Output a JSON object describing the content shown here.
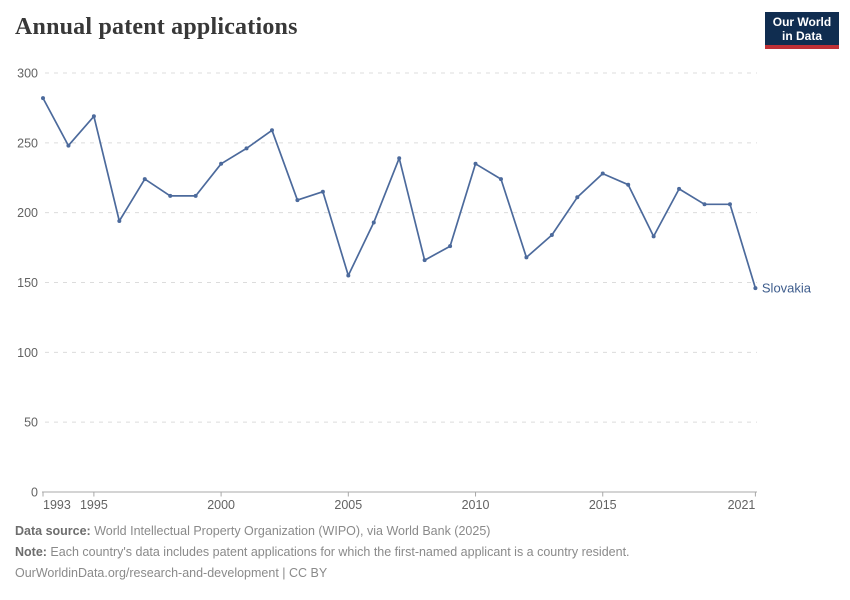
{
  "header": {
    "title": "Annual patent applications",
    "logo": {
      "line1": "Our World",
      "line2": "in Data"
    }
  },
  "chart_data": {
    "type": "line",
    "title": "Annual patent applications",
    "x": [
      1993,
      1994,
      1995,
      1996,
      1997,
      1998,
      1999,
      2000,
      2001,
      2002,
      2003,
      2004,
      2005,
      2006,
      2007,
      2008,
      2009,
      2010,
      2011,
      2012,
      2013,
      2014,
      2015,
      2016,
      2017,
      2018,
      2019,
      2020,
      2021
    ],
    "series": [
      {
        "name": "Slovakia",
        "values": [
          282,
          248,
          269,
          194,
          224,
          212,
          212,
          235,
          246,
          259,
          209,
          215,
          155,
          193,
          239,
          166,
          176,
          235,
          224,
          168,
          184,
          211,
          228,
          220,
          183,
          217,
          206,
          206,
          146
        ],
        "color": "#4c6a9c",
        "label_color": "#3d5c8c"
      }
    ],
    "xlabel": "",
    "ylabel": "",
    "xlim": [
      1993,
      2021
    ],
    "ylim": [
      0,
      300
    ],
    "y_ticks": [
      0,
      50,
      100,
      150,
      200,
      250,
      300
    ],
    "x_ticks": [
      {
        "year": 1993,
        "label": "1993",
        "anchor": "start"
      },
      {
        "year": 1995,
        "label": "1995",
        "anchor": "middle"
      },
      {
        "year": 2000,
        "label": "2000",
        "anchor": "middle"
      },
      {
        "year": 2005,
        "label": "2005",
        "anchor": "middle"
      },
      {
        "year": 2010,
        "label": "2010",
        "anchor": "middle"
      },
      {
        "year": 2015,
        "label": "2015",
        "anchor": "middle"
      },
      {
        "year": 2021,
        "label": "2021",
        "anchor": "end"
      }
    ],
    "grid": "horizontal-dashed",
    "legend_position": "end-of-line-label",
    "entity_label": "Slovakia"
  },
  "colors": {
    "line": "#4c6a9c",
    "entity_label": "#3d5c8c",
    "gridline": "#dcdcdc",
    "axis": "#a8a8a8",
    "tick_label": "#636363",
    "title": "#383838",
    "logo_bg": "#102d50",
    "logo_red": "#bf3036"
  },
  "footer": {
    "data_source_label": "Data source:",
    "data_source_text": " World Intellectual Property Organization (WIPO), via World Bank (2025)",
    "note_label": "Note:",
    "note_text": " Each country's data includes patent applications for which the first-named applicant is a country resident.",
    "url_text": "OurWorldinData.org/research-and-development",
    "separator": " | ",
    "license": "CC BY"
  }
}
